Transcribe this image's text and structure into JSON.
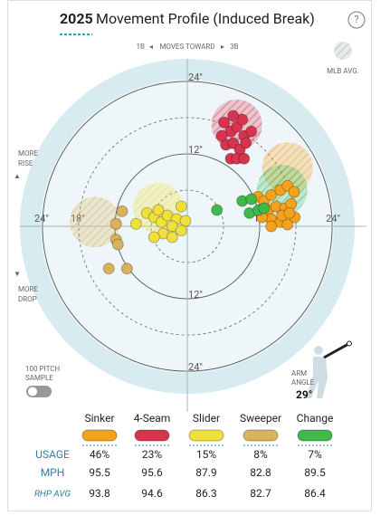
{
  "chart_data": {
    "type": "scatter",
    "title_year": "2025",
    "title": "Movement Profile (Induced Break)",
    "help": "?",
    "direction": {
      "left": "1B",
      "label": "MOVES TOWARD",
      "right": "3B"
    },
    "avg_legend": "MLB AVG.",
    "rise": [
      "MORE",
      "RISE"
    ],
    "drop": [
      "MORE",
      "DROP"
    ],
    "sample": [
      "100 PITCH",
      "SAMPLE"
    ],
    "arm_angle_label": [
      "ARM",
      "ANGLE"
    ],
    "arm_angle": {
      "value": 29,
      "label": "29°"
    },
    "rings": [
      {
        "value": 24,
        "label": "24\"",
        "side": "top"
      },
      {
        "value": 12,
        "label": "12\"",
        "side": "top"
      },
      {
        "value": 12,
        "label": "12\"",
        "side": "right"
      },
      {
        "value": 24,
        "label": "24\"",
        "side": "right"
      },
      {
        "value": 24,
        "label": "24\"",
        "side": "left"
      },
      {
        "value": 18,
        "label": "18\"",
        "side": "left"
      },
      {
        "value": 12,
        "label": "12\"",
        "side": "bottom"
      },
      {
        "value": 24,
        "label": "24\"",
        "side": "bottom"
      }
    ],
    "series": [
      {
        "name": "Sinker",
        "color": "#f5a11c",
        "avg": [
          16.6,
          9.7
        ],
        "x": [
          11.7,
          12.7,
          13.9,
          15.4,
          16.6,
          17.7,
          13.3,
          14.7,
          16.2,
          17.2,
          13.9,
          15.4,
          16.6,
          17.8,
          12.4,
          13.9,
          15.7,
          16.9
        ],
        "y": [
          4.9,
          4.2,
          5.2,
          6.0,
          6.7,
          5.7,
          2.7,
          3.3,
          3.0,
          3.7,
          1.2,
          0.7,
          0.3,
          1.5,
          1.5,
          0,
          1.8,
          2.2
        ]
      },
      {
        "name": "4-Seam",
        "color": "#d8334f",
        "avg": [
          8.2,
          16.8
        ],
        "x": [
          6.1,
          7.2,
          8.2,
          9.4,
          10.6,
          6.4,
          7.6,
          8.7,
          9.7,
          7.2,
          8.2,
          9.4,
          5.7,
          9.1,
          7.6
        ],
        "y": [
          17.2,
          15.7,
          16.5,
          15.0,
          15.7,
          13.5,
          13.8,
          12.7,
          13.8,
          11.2,
          11.2,
          11.2,
          15.0,
          17.7,
          18.3
        ]
      },
      {
        "name": "Slider",
        "color": "#f0e13a",
        "avg": [
          -4.8,
          3.0
        ],
        "x": [
          -8.5,
          -6.7,
          -5.5,
          -4.3,
          -3.3,
          -1.8,
          -0.3,
          -2.5,
          -4.0,
          -5.5,
          -2.5,
          -1.0,
          -4.8,
          -1.0
        ],
        "y": [
          0.4,
          2.2,
          1.5,
          0.7,
          1.8,
          1.2,
          0.9,
          0,
          -1.2,
          -1.8,
          -1.8,
          -0.7,
          2.7,
          3.3
        ]
      },
      {
        "name": "Sweeper",
        "color": "#d9b25c",
        "avg": [
          -15.3,
          0.7
        ],
        "x": [
          -11.8,
          -10.8,
          -11.8,
          -11.5,
          -13.0,
          -10.0
        ],
        "y": [
          0.4,
          2.5,
          -2.2,
          -3.0,
          -7.0,
          -7.0
        ]
      },
      {
        "name": "Change",
        "color": "#3fb94a",
        "avg": [
          15.7,
          6.0
        ],
        "x": [
          4.9,
          9.1,
          10.3,
          11.8,
          12.7,
          10.6
        ],
        "y": [
          2.7,
          4.2,
          2.2,
          2.7,
          3.0,
          4.5
        ]
      }
    ]
  },
  "table": {
    "rows": [
      {
        "label": "USAGE",
        "values": [
          46,
          23,
          15,
          8,
          7
        ],
        "value_labels": [
          "46%",
          "23%",
          "15%",
          "8%",
          "7%"
        ]
      },
      {
        "label": "MPH",
        "values": [
          95.5,
          95.6,
          87.9,
          82.8,
          89.5
        ]
      },
      {
        "label": "RHP AVG",
        "values": [
          93.8,
          94.6,
          86.3,
          82.7,
          86.4
        ]
      }
    ]
  }
}
